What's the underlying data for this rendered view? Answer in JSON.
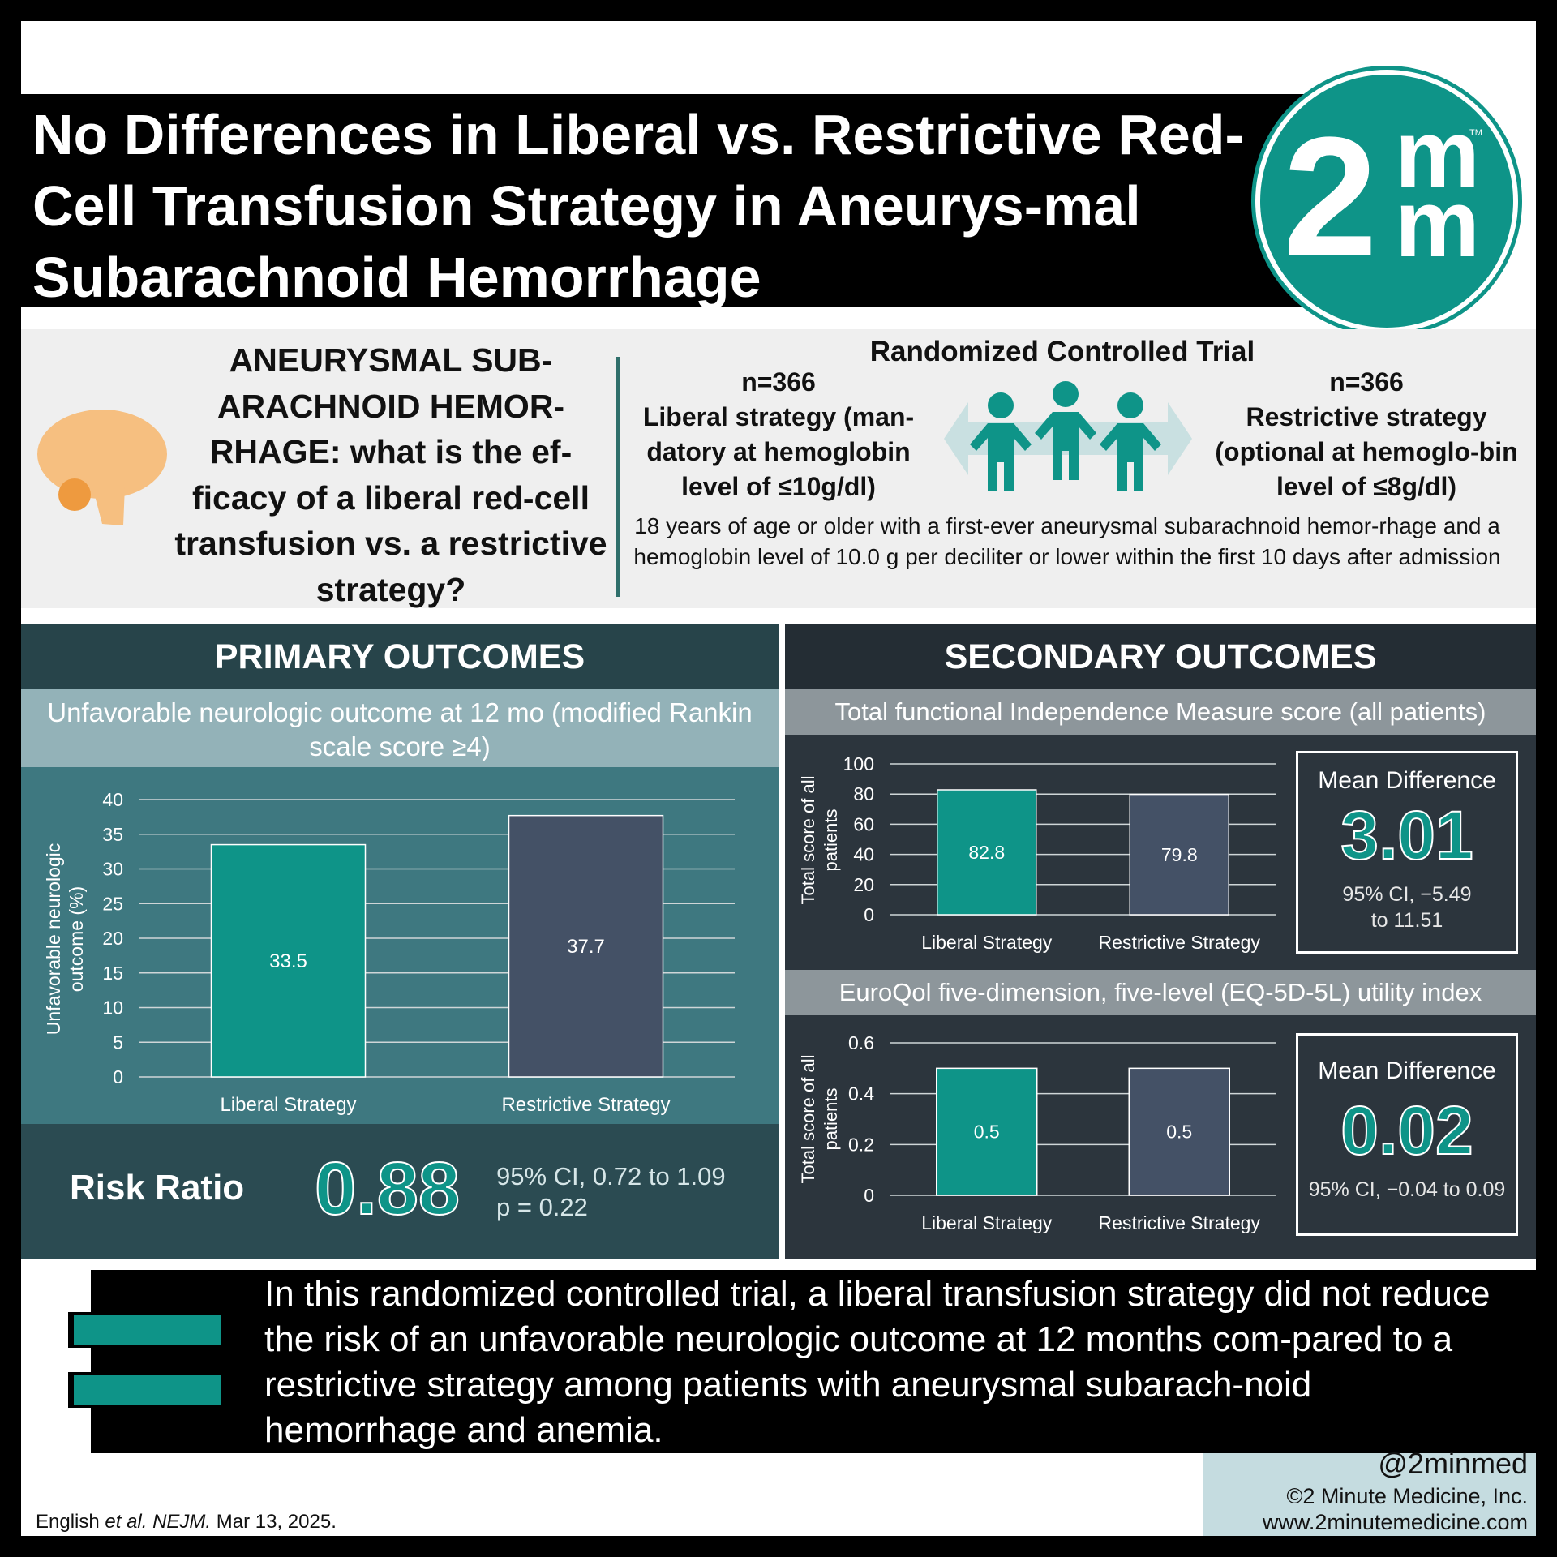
{
  "title": "No Differences in Liberal vs. Restrictive Red-Cell Transfusion Strategy in Aneurys-mal Subarachnoid Hemorrhage",
  "logo": {
    "digit": "2",
    "letter_top": "m",
    "letter_bottom": "m",
    "tm": "TM"
  },
  "question": "ANEURYSMAL SUB-ARACHNOID HEMOR-RHAGE: what is the ef-ficacy of a liberal red-cell transfusion vs. a restrictive strategy?",
  "trial": {
    "title": "Randomized Controlled Trial",
    "left_n": "n=366",
    "left_arm": "Liberal strategy (man-datory at hemoglobin level of ≤10g/dl)",
    "right_n": "n=366",
    "right_arm": "Restrictive strategy (optional at hemoglo-bin level of ≤8g/dl)",
    "criteria": "18 years of age or older with a first-ever aneurysmal subarachnoid hemor-rhage and a hemoglobin level of 10.0 g per deciliter or lower within the first 10 days after admission"
  },
  "primary": {
    "header": "PRIMARY OUTCOMES",
    "subtitle": "Unfavorable neurologic outcome at 12 mo (modified Rankin scale score ≥4)",
    "risk_ratio_label": "Risk Ratio",
    "risk_ratio_value": "0.88",
    "ci": "95% CI, 0.72 to 1.09",
    "p": "p = 0.22"
  },
  "secondary": {
    "header": "SECONDARY OUTCOMES",
    "fim_subtitle": "Total functional Independence Measure score (all patients)",
    "fim_md_title": "Mean Difference",
    "fim_md_value": "3.01",
    "fim_md_ci": "95% CI, −5.49 to 11.51",
    "eq_subtitle": "EuroQol five-dimension, five-level (EQ-5D-5L) utility index",
    "eq_md_title": "Mean Difference",
    "eq_md_value": "0.02",
    "eq_md_ci": "95% CI, −0.04 to 0.09"
  },
  "conclusion": "In this randomized controlled trial, a liberal transfusion strategy did not reduce the risk of an unfavorable neurologic outcome at 12 months com-pared to a restrictive strategy among patients with aneurysmal subarach-noid hemorrhage and anemia.",
  "footer": {
    "handle": "@2minmed",
    "copyright": "©2 Minute Medicine, Inc.",
    "url": "www.2minutemedicine.com",
    "citation_author": "English",
    "citation_etal": "et al.",
    "citation_journal": "NEJM.",
    "citation_date": "Mar 13, 2025."
  },
  "colors": {
    "teal": "#0e9488",
    "slate": "#445166",
    "bg_primary": "#3e7880",
    "bg_secondary": "#2c353d"
  },
  "icons": [
    "brain-icon",
    "people-icon"
  ],
  "chart_data": [
    {
      "type": "bar",
      "title": "Unfavorable neurologic outcome at 12 mo (modified Rankin scale score ≥4)",
      "categories": [
        "Liberal Strategy",
        "Restrictive Strategy"
      ],
      "values": [
        33.5,
        37.7
      ],
      "labels": [
        "33.5",
        "37.7"
      ],
      "ylabel": "Unfavorable neurologic outcome (%)",
      "ylim": [
        0,
        40
      ],
      "yticks": [
        0,
        5,
        10,
        15,
        20,
        25,
        30,
        35,
        40
      ],
      "grid": true
    },
    {
      "type": "bar",
      "title": "Total functional Independence Measure score (all patients)",
      "categories": [
        "Liberal Strategy",
        "Restrictive Strategy"
      ],
      "values": [
        82.8,
        79.8
      ],
      "labels": [
        "82.8",
        "79.8"
      ],
      "ylabel": "Total score of all patients",
      "ylim": [
        0,
        100
      ],
      "yticks": [
        0,
        20,
        40,
        60,
        80,
        100
      ],
      "grid": true
    },
    {
      "type": "bar",
      "title": "EuroQol five-dimension, five-level (EQ-5D-5L) utility index",
      "categories": [
        "Liberal Strategy",
        "Restrictive Strategy"
      ],
      "values": [
        0.5,
        0.5
      ],
      "labels": [
        "0.5",
        "0.5"
      ],
      "ylabel": "Total score of all patients",
      "ylim": [
        0,
        0.6
      ],
      "yticks": [
        0,
        0.2,
        0.4,
        0.6
      ],
      "grid": true
    }
  ]
}
